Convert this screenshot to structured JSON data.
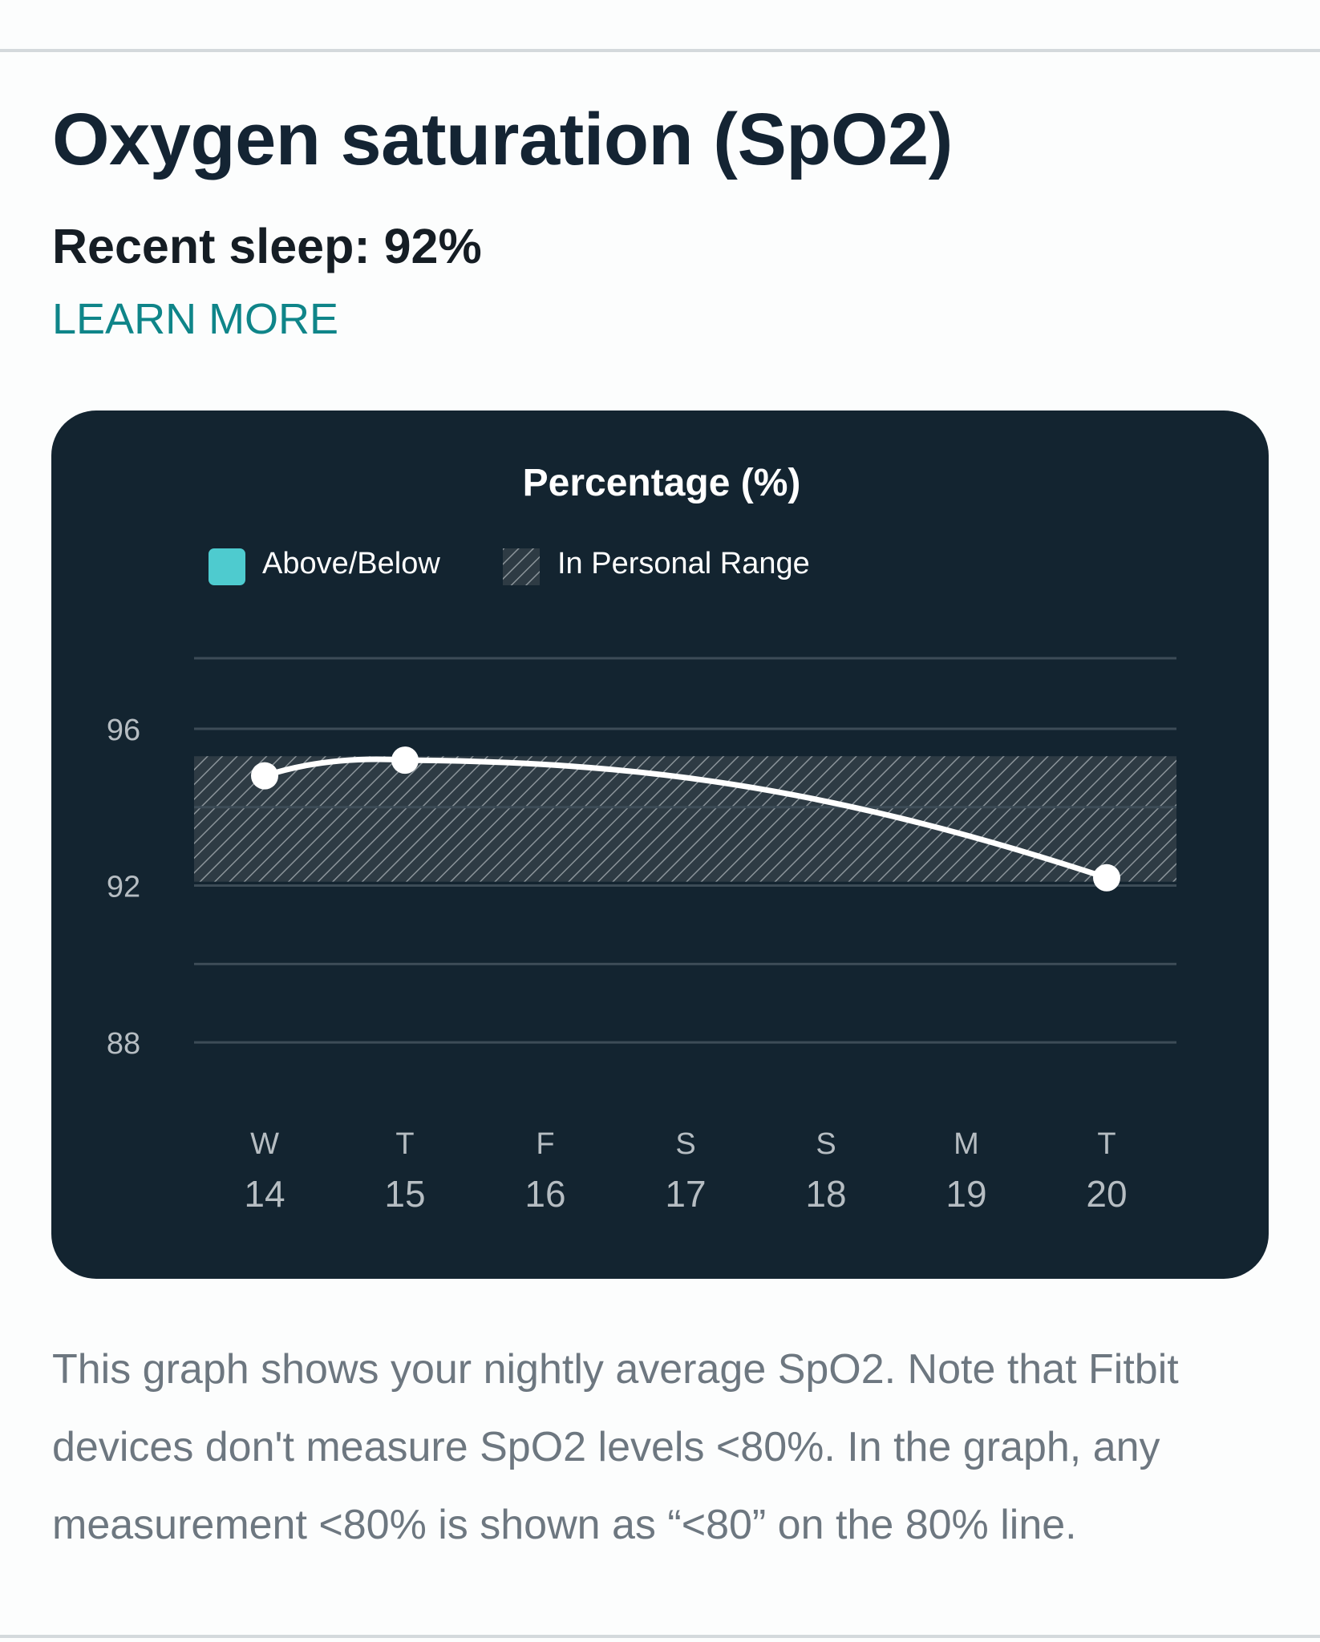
{
  "header": {
    "title": "Oxygen saturation (SpO2)",
    "recent_sleep": "Recent sleep: 92%",
    "learn_more": "LEARN MORE"
  },
  "chart": {
    "title": "Percentage (%)",
    "legend": [
      {
        "label": "Above/Below",
        "swatch": "solid"
      },
      {
        "label": "In Personal Range",
        "swatch": "hatched"
      }
    ]
  },
  "chart_data": {
    "type": "line",
    "title": "Percentage (%)",
    "xlabel": "",
    "ylabel": "",
    "day_letters": [
      "W",
      "T",
      "F",
      "S",
      "S",
      "M",
      "T"
    ],
    "categories": [
      "14",
      "15",
      "16",
      "17",
      "18",
      "19",
      "20"
    ],
    "series": [
      {
        "values": [
          94.8,
          95.2,
          null,
          null,
          null,
          null,
          92.2
        ]
      }
    ],
    "personal_range": [
      92.1,
      95.3
    ],
    "y_ticks": [
      88,
      92,
      96
    ],
    "ylim": [
      87.9,
      97.8
    ],
    "grid": true,
    "legend_position": "top"
  },
  "description": "This graph shows your nightly average SpO2. Note that Fitbit devices don't measure SpO2 levels <80%. In the graph, any measurement <80% is shown as “<80” on the 80% line.",
  "colors": {
    "card_bg": "#132430",
    "accent": "#4ecbcf",
    "link": "#0f8589",
    "line": "#ffffff",
    "grid": "#3d4c57"
  }
}
